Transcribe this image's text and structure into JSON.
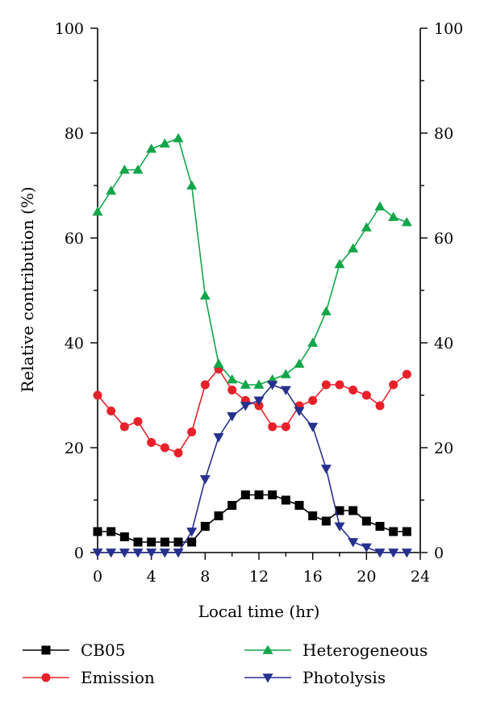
{
  "chart_data": {
    "type": "line",
    "xlabel": "Local time (hr)",
    "ylabel": "Relative contribution (%)",
    "xlim": [
      0,
      24
    ],
    "ylim": [
      0,
      100
    ],
    "xticks": [
      0,
      4,
      8,
      12,
      16,
      20,
      24
    ],
    "yticks": [
      0,
      20,
      40,
      60,
      80,
      100
    ],
    "right_yticks": [
      0,
      20,
      40,
      60,
      80,
      100
    ],
    "grid": false,
    "legend_position": "bottom",
    "x": [
      0,
      1,
      2,
      3,
      4,
      5,
      6,
      7,
      8,
      9,
      10,
      11,
      12,
      13,
      14,
      15,
      16,
      17,
      18,
      19,
      20,
      21,
      22,
      23
    ],
    "series": [
      {
        "name": "CB05",
        "color": "#000000",
        "marker": "square",
        "values": [
          4,
          4,
          3,
          2,
          2,
          2,
          2,
          2,
          5,
          7,
          9,
          11,
          11,
          11,
          10,
          9,
          7,
          6,
          8,
          8,
          6,
          5,
          4,
          4
        ]
      },
      {
        "name": "Emission",
        "color": "#e8202a",
        "marker": "circle",
        "values": [
          30,
          27,
          24,
          25,
          21,
          20,
          19,
          23,
          32,
          35,
          31,
          29,
          28,
          24,
          24,
          28,
          29,
          32,
          32,
          31,
          30,
          28,
          32,
          34
        ]
      },
      {
        "name": "Heterogeneous",
        "color": "#12a64a",
        "marker": "triangle-up",
        "values": [
          65,
          69,
          73,
          73,
          77,
          78,
          79,
          70,
          49,
          36,
          33,
          32,
          32,
          33,
          34,
          36,
          40,
          46,
          55,
          58,
          62,
          66,
          64,
          63
        ]
      },
      {
        "name": "Photolysis",
        "color": "#26318f",
        "marker": "triangle-down",
        "values": [
          0,
          0,
          0,
          0,
          0,
          0,
          0,
          4,
          14,
          22,
          26,
          28,
          29,
          32,
          31,
          27,
          24,
          16,
          5,
          2,
          1,
          0,
          0,
          0
        ]
      }
    ]
  }
}
